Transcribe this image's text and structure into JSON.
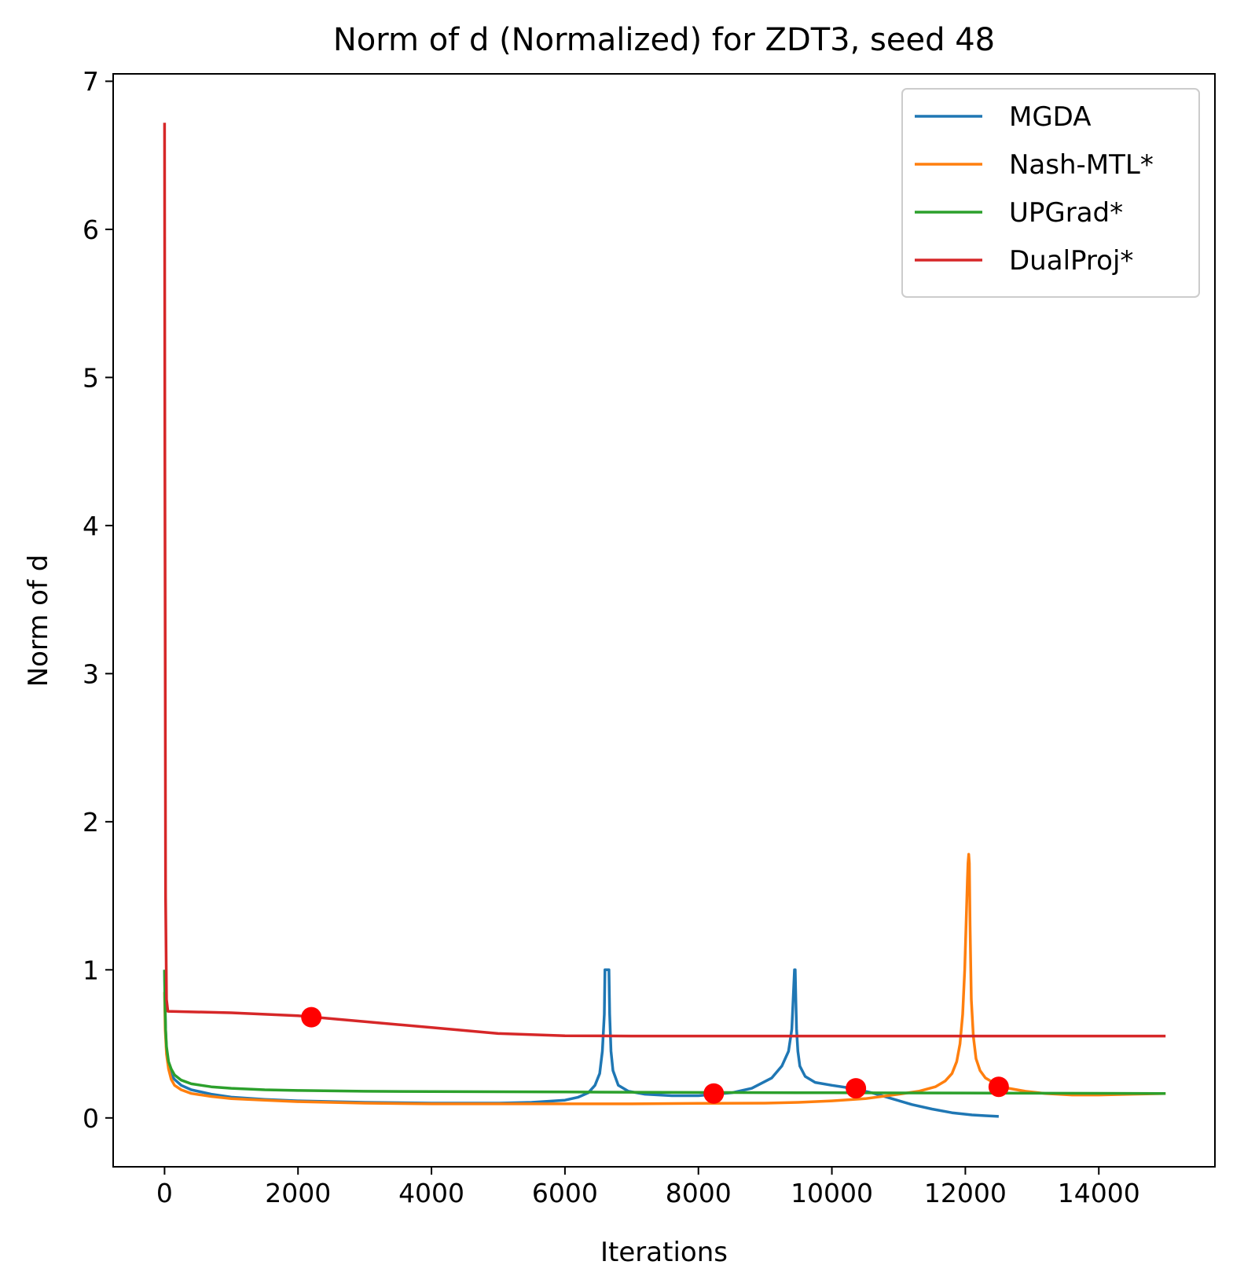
{
  "chart_data": {
    "type": "line",
    "title": "Norm of d (Normalized) for ZDT3, seed 48",
    "xlabel": "Iterations",
    "ylabel": "Norm of d",
    "xlim": [
      -770,
      15740
    ],
    "ylim": [
      -0.33,
      7.05
    ],
    "xticks": [
      0,
      2000,
      4000,
      6000,
      8000,
      10000,
      12000,
      14000
    ],
    "yticks": [
      0,
      1,
      2,
      3,
      4,
      5,
      6,
      7
    ],
    "grid": false,
    "legend_position": "top-right",
    "series": [
      {
        "name": "MGDA",
        "color": "#1f77b4",
        "x": [
          0,
          5,
          15,
          30,
          60,
          100,
          150,
          250,
          400,
          700,
          1000,
          1500,
          2000,
          3000,
          4000,
          5000,
          5500,
          6000,
          6200,
          6350,
          6450,
          6520,
          6560,
          6590,
          6600,
          6620,
          6640,
          6660,
          6670,
          6690,
          6720,
          6800,
          6950,
          7200,
          7600,
          8000,
          8500,
          8800,
          9100,
          9250,
          9350,
          9400,
          9420,
          9440,
          9450,
          9460,
          9470,
          9490,
          9520,
          9600,
          9750,
          10000,
          10300,
          10600,
          10900,
          11200,
          11500,
          11800,
          12100,
          12300,
          12500
        ],
        "y": [
          1.0,
          0.85,
          0.6,
          0.45,
          0.34,
          0.29,
          0.26,
          0.22,
          0.19,
          0.16,
          0.14,
          0.125,
          0.115,
          0.105,
          0.1,
          0.1,
          0.105,
          0.12,
          0.14,
          0.17,
          0.22,
          0.3,
          0.45,
          0.7,
          1.0,
          1.0,
          1.0,
          1.0,
          0.7,
          0.45,
          0.32,
          0.22,
          0.18,
          0.16,
          0.15,
          0.15,
          0.17,
          0.2,
          0.27,
          0.35,
          0.45,
          0.6,
          0.8,
          1.0,
          1.0,
          0.8,
          0.6,
          0.45,
          0.35,
          0.28,
          0.24,
          0.22,
          0.2,
          0.17,
          0.13,
          0.09,
          0.06,
          0.035,
          0.02,
          0.015,
          0.01
        ]
      },
      {
        "name": "Nash-MTL*",
        "color": "#ff7f0e",
        "x": [
          0,
          10,
          30,
          60,
          100,
          150,
          250,
          400,
          700,
          1000,
          1500,
          2000,
          3000,
          4000,
          5000,
          6000,
          7000,
          8000,
          9000,
          9500,
          10000,
          10500,
          11000,
          11300,
          11550,
          11700,
          11800,
          11870,
          11920,
          11960,
          11990,
          12010,
          12030,
          12040,
          12050,
          12060,
          12070,
          12090,
          12120,
          12160,
          12220,
          12300,
          12450,
          12650,
          12900,
          13200,
          13600,
          14000,
          14500,
          15000
        ],
        "y": [
          0.85,
          0.6,
          0.43,
          0.33,
          0.26,
          0.22,
          0.19,
          0.165,
          0.145,
          0.13,
          0.12,
          0.11,
          0.1,
          0.095,
          0.095,
          0.095,
          0.095,
          0.098,
          0.1,
          0.105,
          0.115,
          0.13,
          0.16,
          0.18,
          0.21,
          0.25,
          0.3,
          0.38,
          0.5,
          0.7,
          1.0,
          1.3,
          1.6,
          1.72,
          1.78,
          1.72,
          1.3,
          0.8,
          0.55,
          0.4,
          0.32,
          0.27,
          0.23,
          0.2,
          0.18,
          0.165,
          0.155,
          0.155,
          0.16,
          0.165
        ]
      },
      {
        "name": "UPGrad*",
        "color": "#2ca02c",
        "x": [
          0,
          5,
          15,
          30,
          60,
          100,
          150,
          250,
          400,
          700,
          1000,
          1500,
          2000,
          3000,
          4000,
          6000,
          8000,
          10000,
          12000,
          14000,
          15000
        ],
        "y": [
          1.0,
          0.8,
          0.6,
          0.48,
          0.38,
          0.33,
          0.29,
          0.255,
          0.23,
          0.21,
          0.2,
          0.19,
          0.185,
          0.18,
          0.178,
          0.175,
          0.172,
          0.17,
          0.168,
          0.166,
          0.165
        ]
      },
      {
        "name": "DualProj*",
        "color": "#d62728",
        "x": [
          0,
          5,
          15,
          30,
          50,
          1000,
          2000,
          3000,
          4000,
          5000,
          6000,
          7000,
          8000,
          10000,
          12000,
          15000
        ],
        "y": [
          6.72,
          4.5,
          1.5,
          0.8,
          0.72,
          0.71,
          0.69,
          0.65,
          0.61,
          0.57,
          0.555,
          0.553,
          0.553,
          0.553,
          0.553,
          0.553
        ]
      }
    ],
    "markers": {
      "color": "#ff0000",
      "points": [
        {
          "x": 2200,
          "y": 0.68
        },
        {
          "x": 8230,
          "y": 0.165
        },
        {
          "x": 10360,
          "y": 0.2
        },
        {
          "x": 12500,
          "y": 0.21
        }
      ]
    }
  }
}
